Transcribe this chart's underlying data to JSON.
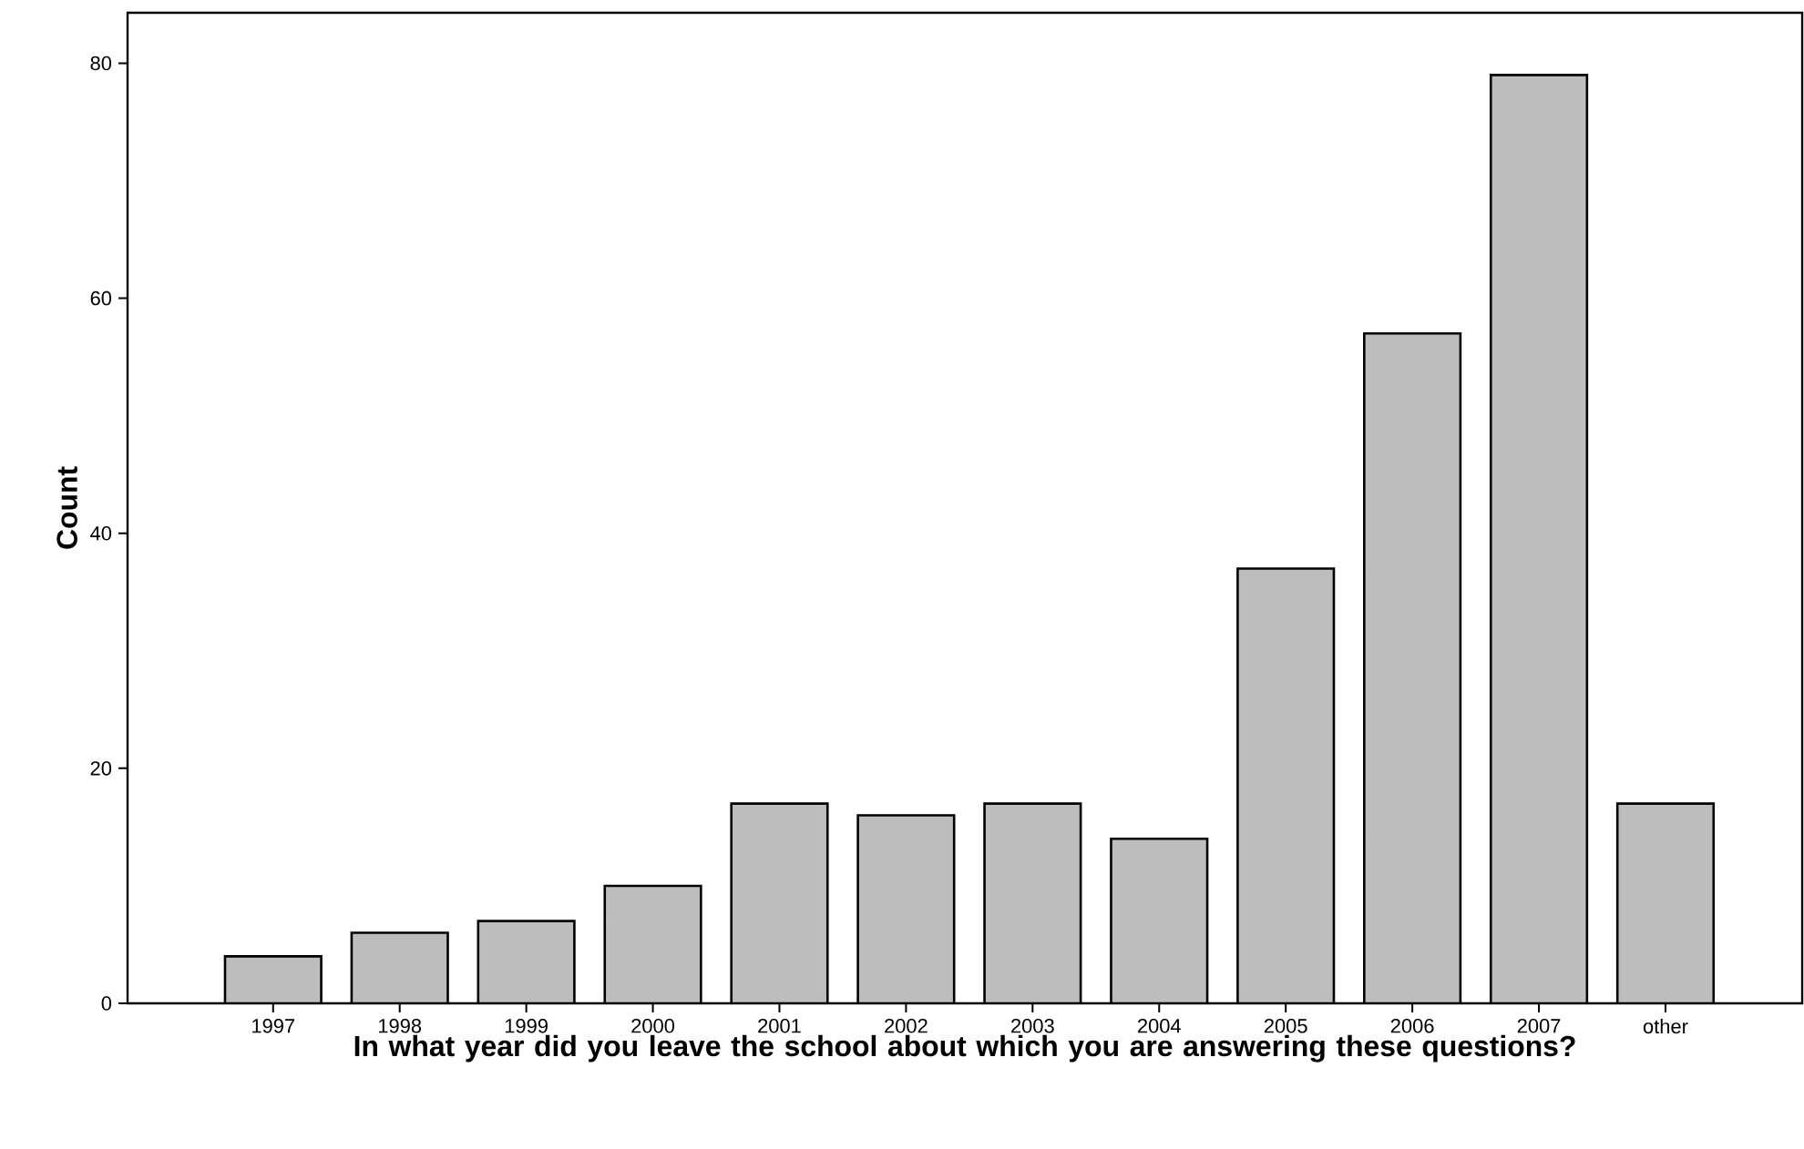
{
  "chart_data": {
    "type": "bar",
    "xlabel": "In what year did you leave the school about which you are answering these questions?",
    "ylabel": "Count",
    "categories": [
      "1997",
      "1998",
      "1999",
      "2000",
      "2001",
      "2002",
      "2003",
      "2004",
      "2005",
      "2006",
      "2007",
      "other"
    ],
    "values": [
      4,
      6,
      7,
      10,
      17,
      16,
      17,
      14,
      37,
      57,
      79,
      17
    ],
    "color": "#bdbdbd",
    "ylim": [
      0,
      84.3
    ],
    "yticks": [
      0,
      20,
      40,
      60,
      80
    ]
  }
}
